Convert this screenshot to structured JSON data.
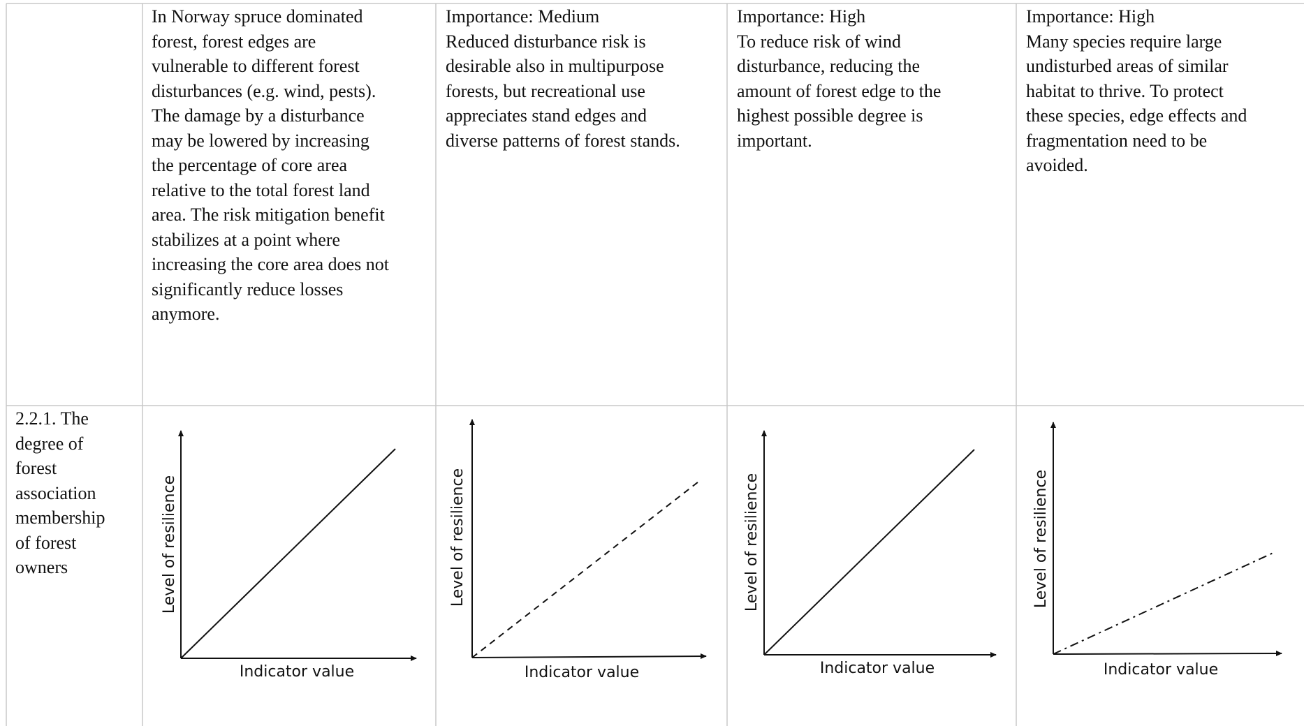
{
  "row1": {
    "col1": "",
    "col2": "In Norway spruce dominated\nforest, forest edges are\nvulnerable to different forest\ndisturbances (e.g. wind, pests).\nThe damage by a disturbance\nmay be lowered by increasing\nthe percentage of core area\nrelative to the total forest land\narea. The risk mitigation benefit\nstabilizes at a point where\nincreasing the core area does not\nsignificantly reduce losses\nanymore.",
    "col3": "Importance: Medium\nReduced disturbance risk is\ndesirable also in multipurpose\nforests, but recreational use\nappreciates stand edges and\ndiverse patterns of forest stands.",
    "col4": "Importance: High\nTo reduce risk of wind\ndisturbance, reducing the\namount of forest edge to the\nhighest possible degree is\nimportant.",
    "col5": "Importance: High\nMany species require large\nundisturbed areas of similar\nhabitat to thrive. To protect\nthese species, edge effects and\nfragmentation need to be\navoided."
  },
  "row2": {
    "col1": "2.2.1. The\ndegree of\nforest\nassociation\nmembership\nof forest\nowners"
  },
  "graphs": [
    {
      "xlabel": "Indicator value",
      "ylabel": "Level of resilience",
      "line_style": "solid"
    },
    {
      "xlabel": "Indicator value",
      "ylabel": "Level of resilience",
      "line_style": "dashed"
    },
    {
      "xlabel": "Indicator value",
      "ylabel": "Level of resilience",
      "line_style": "solid"
    },
    {
      "xlabel": "Indicator value",
      "ylabel": "Level of resilience",
      "line_style": "dash-dot"
    }
  ]
}
